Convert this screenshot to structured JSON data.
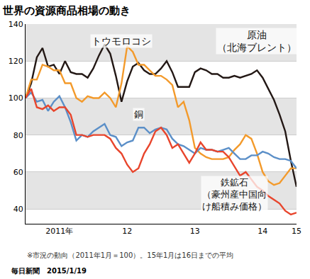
{
  "chart_data": {
    "type": "line",
    "title": "世界の資源商品相場の動き",
    "categories": [
      null,
      null,
      null,
      null,
      null,
      null,
      "2011年",
      null,
      null,
      null,
      null,
      null,
      null,
      null,
      null,
      null,
      null,
      null,
      "12",
      null,
      null,
      null,
      null,
      null,
      null,
      null,
      null,
      null,
      null,
      null,
      "13",
      null,
      null,
      null,
      null,
      null,
      null,
      null,
      null,
      null,
      null,
      null,
      "14",
      null,
      null,
      null,
      null,
      null,
      "15"
    ],
    "series": [
      {
        "name": "原油（北海ブレント）",
        "color": "#231815",
        "values": [
          100,
          108,
          122,
          127,
          117,
          118,
          113,
          120,
          114,
          113,
          113,
          111,
          116,
          123,
          129,
          124,
          112,
          98,
          109,
          117,
          119,
          115,
          113,
          113,
          116,
          120,
          114,
          106,
          106,
          106,
          114,
          116,
          115,
          113,
          113,
          111,
          111,
          112,
          111,
          112,
          113,
          115,
          111,
          105,
          99,
          91,
          82,
          66,
          52
        ]
      },
      {
        "name": "トウモロコシ",
        "color": "#f39a2b",
        "values": [
          100,
          110,
          110,
          118,
          117,
          115,
          115,
          108,
          108,
          100,
          98,
          101,
          100,
          100,
          103,
          100,
          95,
          108,
          128,
          125,
          118,
          118,
          115,
          112,
          112,
          110,
          107,
          95,
          98,
          88,
          73,
          70,
          68,
          67,
          67,
          67,
          68,
          72,
          75,
          80,
          78,
          70,
          60,
          55,
          53,
          54,
          58,
          62,
          62
        ]
      },
      {
        "name": "銅",
        "color": "#5b8fc8",
        "values": [
          100,
          103,
          98,
          99,
          93,
          98,
          101,
          95,
          87,
          77,
          80,
          79,
          82,
          84,
          86,
          80,
          79,
          74,
          76,
          77,
          84,
          84,
          81,
          83,
          84,
          83,
          78,
          75,
          74,
          72,
          70,
          73,
          72,
          72,
          71,
          72,
          73,
          70,
          67,
          67,
          69,
          69,
          71,
          70,
          68,
          67,
          67,
          66,
          62
        ]
      },
      {
        "name": "鉄鉱石（豪州産中国向け船積み価格）",
        "color": "#e8452c",
        "values": [
          100,
          105,
          95,
          94,
          96,
          93,
          95,
          95,
          91,
          80,
          80,
          79,
          80,
          80,
          80,
          78,
          73,
          70,
          64,
          60,
          62,
          70,
          75,
          82,
          84,
          80,
          73,
          75,
          70,
          65,
          70,
          76,
          72,
          72,
          71,
          71,
          68,
          63,
          58,
          60,
          56,
          52,
          50,
          47,
          45,
          43,
          39,
          37,
          38
        ]
      }
    ],
    "ylim": [
      32,
      140
    ],
    "yticks": [
      40,
      60,
      80,
      100,
      120,
      140
    ],
    "grid": true,
    "annotations": [
      {
        "text": [
          "トウモロコシ"
        ],
        "x": 17,
        "y": 131
      },
      {
        "text": [
          "原油",
          "（北海ブレント）"
        ],
        "x": 41,
        "y": 131
      },
      {
        "text": [
          "銅"
        ],
        "x": 20,
        "y": 91
      },
      {
        "text": [
          "鉄鉱石",
          "（豪州産中国向",
          "け船積み価格）"
        ],
        "x": 37,
        "y": 48
      }
    ],
    "notes": [
      "※市況の動向（2011年1月＝100）。15年1月は16日までの平均"
    ],
    "source": "毎日新聞　2015/1/19"
  }
}
